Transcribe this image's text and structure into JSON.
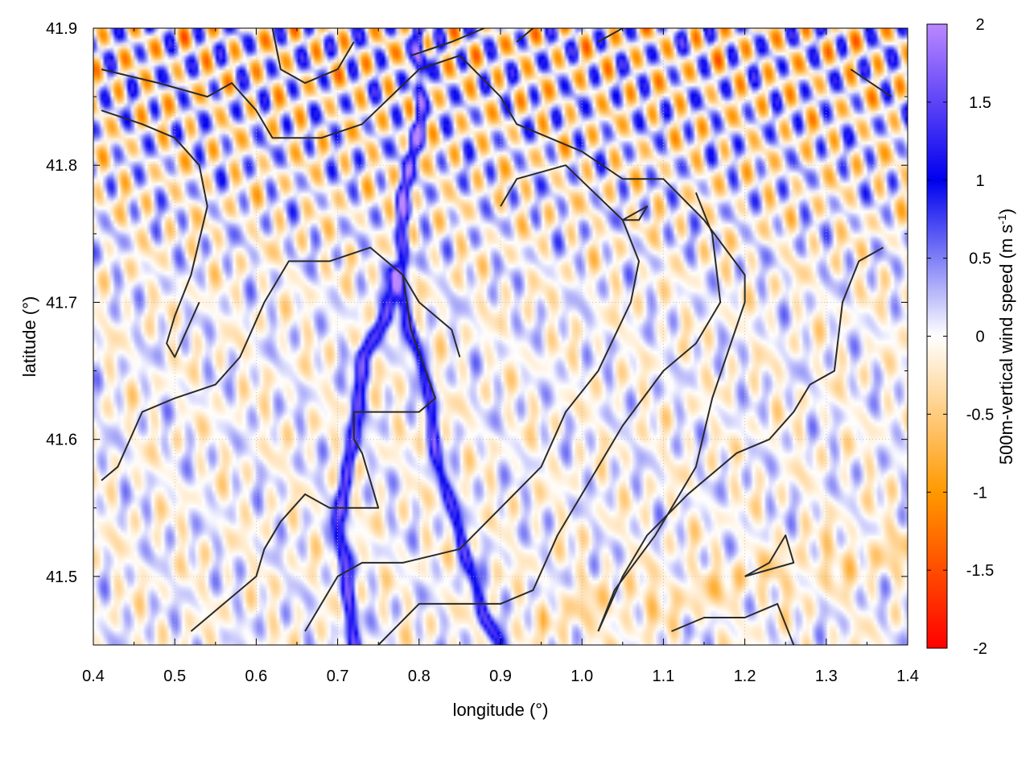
{
  "chart_data": {
    "type": "heatmap",
    "title": "",
    "xlabel": "longitude (°)",
    "ylabel": "latitude (°)",
    "colorbar_label": "500m-vertical wind speed (m s",
    "colorbar_label_exp": "-1",
    "colorbar_label_close": ")",
    "xlim": [
      0.4,
      1.4
    ],
    "ylim": [
      41.45,
      41.9
    ],
    "x_ticks": [
      0.4,
      0.5,
      0.6,
      0.7,
      0.8,
      0.9,
      1.0,
      1.1,
      1.2,
      1.3,
      1.4
    ],
    "x_tick_labels": [
      "0.4",
      "0.5",
      "0.6",
      "0.7",
      "0.8",
      "0.9",
      "1.0",
      "1.1",
      "1.2",
      "1.3",
      "1.4"
    ],
    "y_ticks": [
      41.5,
      41.6,
      41.7,
      41.8,
      41.9
    ],
    "y_tick_labels": [
      "41.5",
      "41.6",
      "41.7",
      "41.8",
      "41.9"
    ],
    "color_range": [
      -2,
      2
    ],
    "colorbar_ticks": [
      2,
      1.5,
      1,
      0.5,
      0,
      -0.5,
      -1,
      -1.5,
      -2
    ],
    "colorbar_tick_labels": [
      "2",
      "1.5",
      "1",
      "0.5",
      "0",
      "-0.5",
      "-1",
      "-1.5",
      "-2"
    ],
    "colormap": [
      "#ff0000",
      "#ff9900",
      "#ffffff",
      "#0000ee",
      "#bb88ff"
    ],
    "grid": true,
    "features": {
      "updraft_band": [
        [
          0.8,
          41.9
        ],
        [
          0.8,
          41.83
        ],
        [
          0.78,
          41.78
        ],
        [
          0.78,
          41.73
        ],
        [
          0.76,
          41.69
        ],
        [
          0.73,
          41.66
        ],
        [
          0.72,
          41.6
        ],
        [
          0.7,
          41.54
        ],
        [
          0.71,
          41.5
        ],
        [
          0.72,
          41.45
        ]
      ],
      "updraft_band_2": [
        [
          0.77,
          41.72
        ],
        [
          0.79,
          41.68
        ],
        [
          0.81,
          41.64
        ],
        [
          0.82,
          41.59
        ],
        [
          0.84,
          41.55
        ],
        [
          0.86,
          41.51
        ],
        [
          0.88,
          41.47
        ],
        [
          0.9,
          41.45
        ]
      ],
      "contours": [
        [
          [
            0.41,
            41.87
          ],
          [
            0.48,
            41.86
          ],
          [
            0.54,
            41.85
          ],
          [
            0.57,
            41.86
          ],
          [
            0.6,
            41.84
          ],
          [
            0.62,
            41.82
          ],
          [
            0.68,
            41.82
          ],
          [
            0.73,
            41.83
          ],
          [
            0.8,
            41.87
          ],
          [
            0.85,
            41.88
          ],
          [
            0.9,
            41.85
          ],
          [
            0.92,
            41.83
          ],
          [
            1.0,
            41.81
          ],
          [
            1.05,
            41.79
          ],
          [
            1.1,
            41.79
          ],
          [
            1.15,
            41.76
          ],
          [
            1.2,
            41.72
          ],
          [
            1.2,
            41.7
          ],
          [
            1.16,
            41.63
          ],
          [
            1.14,
            41.58
          ],
          [
            1.09,
            41.53
          ],
          [
            1.04,
            41.49
          ],
          [
            1.02,
            41.46
          ]
        ],
        [
          [
            0.41,
            41.84
          ],
          [
            0.46,
            41.83
          ],
          [
            0.5,
            41.82
          ],
          [
            0.53,
            41.8
          ],
          [
            0.54,
            41.77
          ],
          [
            0.52,
            41.72
          ],
          [
            0.5,
            41.69
          ],
          [
            0.49,
            41.67
          ],
          [
            0.5,
            41.66
          ],
          [
            0.53,
            41.7
          ]
        ],
        [
          [
            0.41,
            41.57
          ],
          [
            0.43,
            41.58
          ],
          [
            0.46,
            41.62
          ],
          [
            0.5,
            41.63
          ],
          [
            0.55,
            41.64
          ],
          [
            0.58,
            41.66
          ],
          [
            0.61,
            41.7
          ],
          [
            0.64,
            41.73
          ],
          [
            0.69,
            41.73
          ],
          [
            0.74,
            41.74
          ],
          [
            0.78,
            41.72
          ],
          [
            0.8,
            41.7
          ],
          [
            0.84,
            41.68
          ],
          [
            0.85,
            41.66
          ]
        ],
        [
          [
            0.52,
            41.46
          ],
          [
            0.56,
            41.48
          ],
          [
            0.6,
            41.5
          ],
          [
            0.61,
            41.52
          ],
          [
            0.63,
            41.54
          ],
          [
            0.66,
            41.56
          ],
          [
            0.69,
            41.55
          ],
          [
            0.75,
            41.55
          ],
          [
            0.73,
            41.59
          ],
          [
            0.72,
            41.6
          ],
          [
            0.72,
            41.62
          ],
          [
            0.76,
            41.62
          ],
          [
            0.8,
            41.62
          ],
          [
            0.82,
            41.63
          ],
          [
            0.79,
            41.68
          ],
          [
            0.78,
            41.72
          ]
        ],
        [
          [
            0.66,
            41.46
          ],
          [
            0.7,
            41.5
          ],
          [
            0.73,
            41.51
          ],
          [
            0.78,
            41.51
          ],
          [
            0.85,
            41.52
          ],
          [
            0.9,
            41.55
          ],
          [
            0.95,
            41.58
          ],
          [
            0.98,
            41.62
          ],
          [
            1.02,
            41.65
          ],
          [
            1.06,
            41.7
          ],
          [
            1.07,
            41.73
          ],
          [
            1.05,
            41.76
          ],
          [
            0.98,
            41.8
          ],
          [
            0.92,
            41.79
          ],
          [
            0.9,
            41.77
          ]
        ],
        [
          [
            0.75,
            41.45
          ],
          [
            0.8,
            41.48
          ],
          [
            0.85,
            41.48
          ],
          [
            0.9,
            41.48
          ],
          [
            0.94,
            41.49
          ],
          [
            0.97,
            41.53
          ],
          [
            1.01,
            41.57
          ],
          [
            1.05,
            41.61
          ],
          [
            1.1,
            41.65
          ],
          [
            1.14,
            41.67
          ],
          [
            1.17,
            41.7
          ],
          [
            1.16,
            41.75
          ],
          [
            1.14,
            41.78
          ]
        ],
        [
          [
            1.02,
            41.46
          ],
          [
            1.05,
            41.5
          ],
          [
            1.08,
            41.53
          ],
          [
            1.13,
            41.56
          ],
          [
            1.19,
            41.59
          ],
          [
            1.23,
            41.6
          ],
          [
            1.26,
            41.62
          ],
          [
            1.28,
            41.64
          ],
          [
            1.31,
            41.65
          ],
          [
            1.32,
            41.7
          ],
          [
            1.34,
            41.73
          ],
          [
            1.37,
            41.74
          ]
        ],
        [
          [
            1.11,
            41.46
          ],
          [
            1.15,
            41.47
          ],
          [
            1.2,
            41.47
          ],
          [
            1.24,
            41.48
          ],
          [
            1.26,
            41.45
          ]
        ],
        [
          [
            1.2,
            41.5
          ],
          [
            1.23,
            41.51
          ],
          [
            1.25,
            41.53
          ],
          [
            1.26,
            41.51
          ],
          [
            1.2,
            41.5
          ]
        ],
        [
          [
            0.62,
            41.9
          ],
          [
            0.63,
            41.87
          ],
          [
            0.66,
            41.86
          ],
          [
            0.7,
            41.87
          ],
          [
            0.72,
            41.89
          ]
        ],
        [
          [
            0.79,
            41.88
          ],
          [
            0.84,
            41.89
          ],
          [
            0.88,
            41.9
          ]
        ],
        [
          [
            0.92,
            41.89
          ],
          [
            0.94,
            41.9
          ]
        ],
        [
          [
            1.02,
            41.89
          ],
          [
            1.05,
            41.9
          ]
        ],
        [
          [
            1.33,
            41.87
          ],
          [
            1.38,
            41.85
          ]
        ],
        [
          [
            1.05,
            41.76
          ],
          [
            1.07,
            41.76
          ],
          [
            1.08,
            41.77
          ],
          [
            1.05,
            41.76
          ]
        ]
      ]
    }
  }
}
